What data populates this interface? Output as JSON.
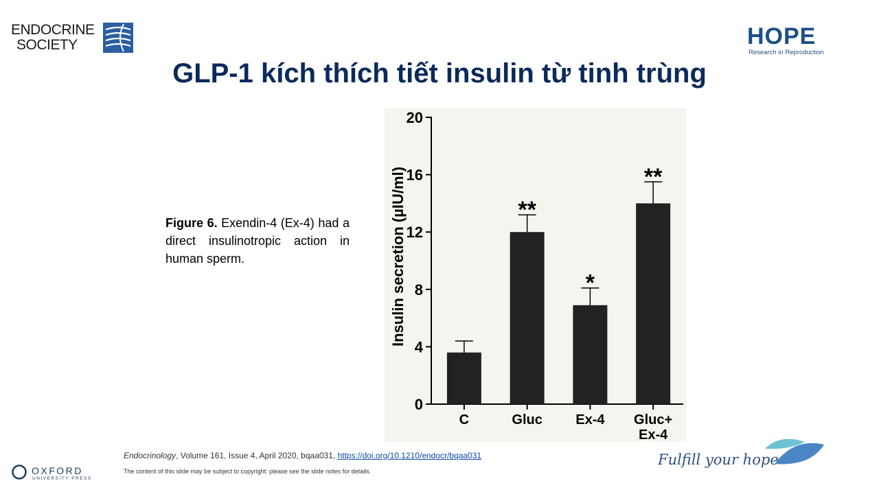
{
  "logos": {
    "endocrine_line1": "ENDOCRINE",
    "endocrine_line2": "SOCIETY",
    "hope_word": "HOPE",
    "hope_tagline": "Research in Reproduction",
    "oxford_word": "OXFORD",
    "oxford_sub": "UNIVERSITY PRESS",
    "fulfill": "Fulfill your hope"
  },
  "title": "GLP-1 kích thích tiết insulin từ tinh trùng",
  "caption": {
    "label": "Figure 6.",
    "text": " Exendin-4 (Ex-4) had a direct insulinotropic action in human sperm."
  },
  "citation": {
    "journal": "Endocrinology",
    "details": ", Volume 161, Issue 4, April 2020, bqaa031, ",
    "link": "https://doi.org/10.1210/endocr/bqaa031"
  },
  "copyright": "The content of this slide may be subject to copyright: please see the slide notes for details.",
  "colors": {
    "title": "#0b2a5b",
    "bar": "#222222",
    "hope_blue": "#1b4f86"
  },
  "chart_data": {
    "type": "bar",
    "categories": [
      "C",
      "Gluc",
      "Ex-4",
      "Gluc+\nEx-4"
    ],
    "values": [
      3.6,
      12.0,
      6.9,
      14.0
    ],
    "error_upper": [
      4.4,
      13.2,
      8.1,
      15.5
    ],
    "significance": [
      "",
      "**",
      "*",
      "**"
    ],
    "ylabel": "Insulin secretion (µIU/ml)",
    "ylim": [
      0,
      20
    ],
    "yticks": [
      0,
      4,
      8,
      12,
      16,
      20
    ],
    "xlabel": "",
    "title": ""
  }
}
